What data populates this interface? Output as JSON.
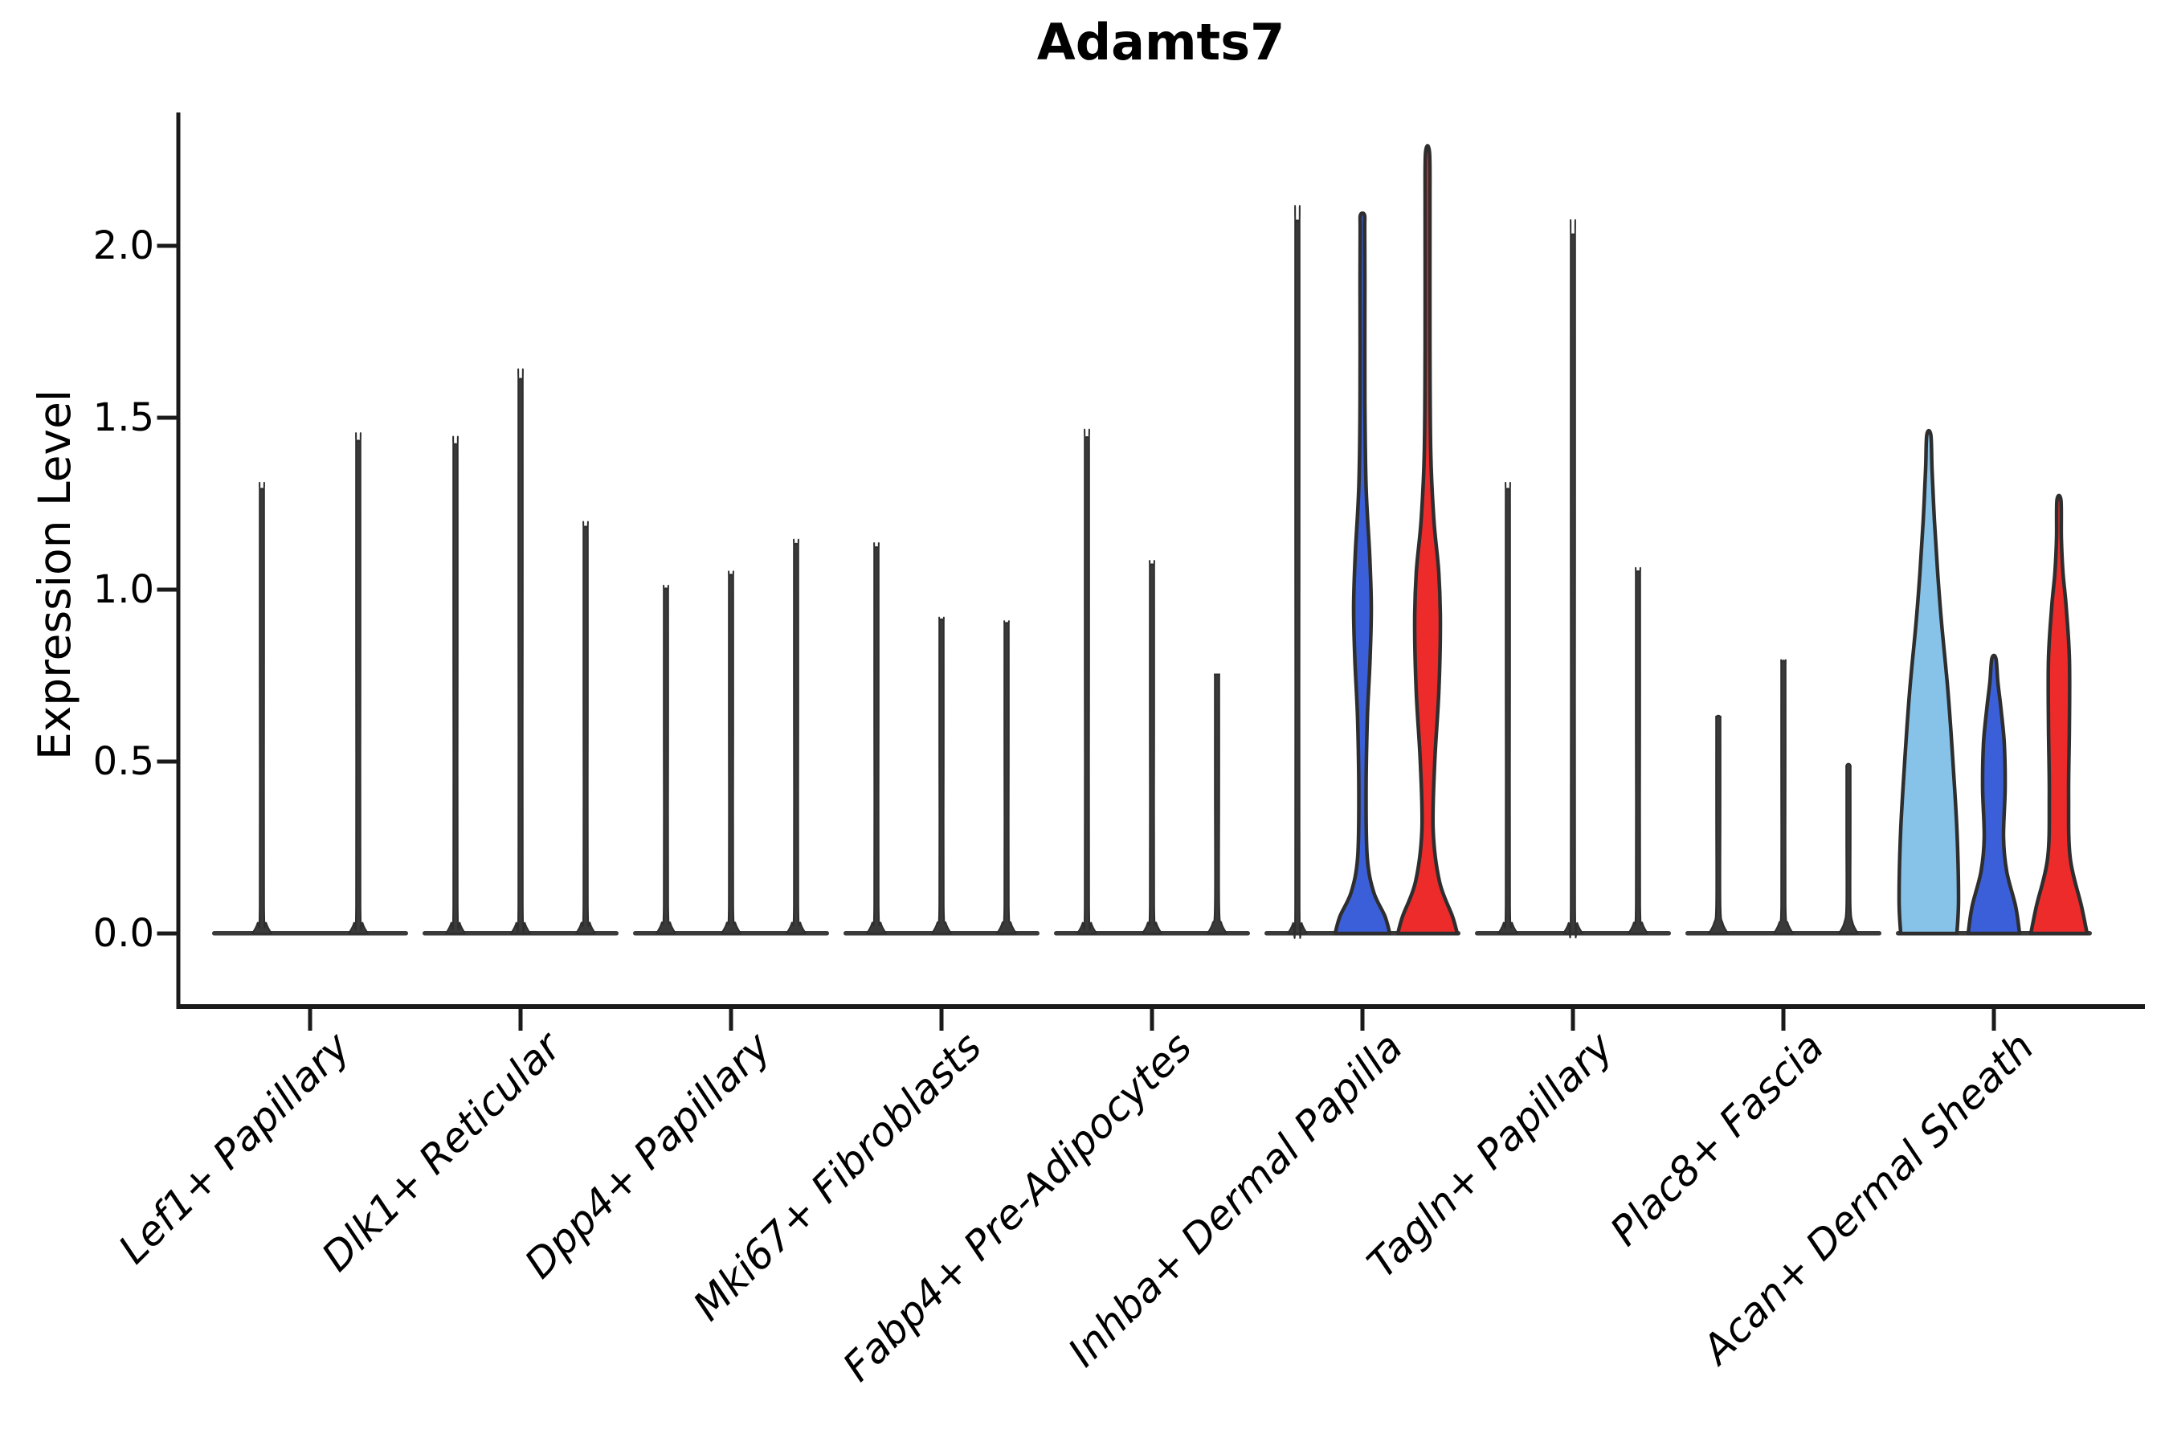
{
  "title": "Adamts7",
  "y_axis": {
    "label": "Expression Level",
    "tick_labels": [
      "0.0",
      "0.5",
      "1.0",
      "1.5",
      "2.0"
    ]
  },
  "colors": {
    "background": "#FFFFFF",
    "axis": "#1A1A1A",
    "text": "#000000",
    "outline": "#2E2E2E",
    "spike": "#3A3A3A",
    "skyblue": "#87C3E8",
    "blue": "#3B5FD8",
    "red": "#ED2B2B"
  },
  "chart_data": {
    "type": "violin",
    "title": "Adamts7",
    "xlabel": "",
    "ylabel": "Expression Level",
    "ylim": [
      0,
      2.39
    ],
    "yticks": [
      0.0,
      0.5,
      1.0,
      1.5,
      2.0
    ],
    "grid": false,
    "legend": "none",
    "categories": [
      "Lef1+ Papillary",
      "Dlk1+ Reticular",
      "Dpp4+ Papillary",
      "Mki67+ Fibroblasts",
      "Fabp4+ Pre-Adipocytes",
      "Inhba+ Dermal Papilla",
      "Tagln+ Papillary",
      "Plac8+ Fascia",
      "Acan+ Dermal Sheath"
    ],
    "groups": [
      {
        "category": "Lef1+ Papillary",
        "violins": [
          {
            "kind": "spike",
            "peak": 1.29,
            "color": "spike"
          },
          {
            "kind": "spike",
            "peak": 1.43,
            "color": "spike"
          }
        ]
      },
      {
        "category": "Dlk1+ Reticular",
        "violins": [
          {
            "kind": "spike",
            "peak": 1.42,
            "color": "spike"
          },
          {
            "kind": "spike",
            "peak": 1.61,
            "color": "spike"
          },
          {
            "kind": "spike",
            "peak": 1.18,
            "color": "spike"
          }
        ]
      },
      {
        "category": "Dpp4+ Papillary",
        "violins": [
          {
            "kind": "spike",
            "peak": 1.0,
            "color": "spike"
          },
          {
            "kind": "spike",
            "peak": 1.04,
            "color": "spike"
          },
          {
            "kind": "spike",
            "peak": 1.13,
            "color": "spike"
          }
        ]
      },
      {
        "category": "Mki67+ Fibroblasts",
        "violins": [
          {
            "kind": "spike",
            "peak": 1.12,
            "color": "spike"
          },
          {
            "kind": "spike",
            "peak": 0.91,
            "color": "spike"
          },
          {
            "kind": "spike",
            "peak": 0.9,
            "color": "spike"
          }
        ]
      },
      {
        "category": "Fabp4+ Pre-Adipocytes",
        "violins": [
          {
            "kind": "spike",
            "peak": 1.44,
            "color": "spike"
          },
          {
            "kind": "spike",
            "peak": 1.07,
            "color": "spike"
          },
          {
            "kind": "spike",
            "peak": 0.75,
            "color": "spike"
          }
        ]
      },
      {
        "category": "Inhba+ Dermal Papilla",
        "violins": [
          {
            "kind": "spike",
            "peak": 2.07,
            "color": "spike"
          },
          {
            "kind": "violin",
            "peak": 2.09,
            "color": "blue",
            "profile": [
              [
                0,
                34
              ],
              [
                0.05,
                28
              ],
              [
                0.12,
                14
              ],
              [
                0.22,
                6
              ],
              [
                0.4,
                4.5
              ],
              [
                0.62,
                6
              ],
              [
                0.8,
                9.5
              ],
              [
                0.95,
                11
              ],
              [
                1.1,
                9
              ],
              [
                1.3,
                4.5
              ],
              [
                1.55,
                3
              ],
              [
                1.9,
                3
              ],
              [
                2.05,
                2.8
              ],
              [
                2.09,
                2.5
              ]
            ]
          },
          {
            "kind": "violin",
            "peak": 2.27,
            "color": "red",
            "profile": [
              [
                0,
                37
              ],
              [
                0.05,
                31
              ],
              [
                0.15,
                15
              ],
              [
                0.3,
                7
              ],
              [
                0.5,
                9
              ],
              [
                0.7,
                14
              ],
              [
                0.9,
                16
              ],
              [
                1.05,
                14
              ],
              [
                1.2,
                8
              ],
              [
                1.4,
                4
              ],
              [
                1.7,
                3
              ],
              [
                2.1,
                3
              ],
              [
                2.27,
                2.5
              ]
            ]
          }
        ]
      },
      {
        "category": "Tagln+ Papillary",
        "violins": [
          {
            "kind": "spike",
            "peak": 1.29,
            "color": "spike"
          },
          {
            "kind": "spike",
            "peak": 2.03,
            "color": "spike"
          },
          {
            "kind": "spike",
            "peak": 1.05,
            "color": "spike"
          }
        ]
      },
      {
        "category": "Plac8+ Fascia",
        "violins": [
          {
            "kind": "spike",
            "peak": 0.63,
            "color": "spike"
          },
          {
            "kind": "spike",
            "peak": 0.79,
            "color": "spike"
          },
          {
            "kind": "spike",
            "peak": 0.49,
            "color": "spike"
          }
        ]
      },
      {
        "category": "Acan+ Dermal Sheath",
        "violins": [
          {
            "kind": "violin",
            "peak": 1.45,
            "color": "skyblue",
            "profile": [
              [
                0,
                35
              ],
              [
                0.1,
                37
              ],
              [
                0.3,
                35
              ],
              [
                0.5,
                30
              ],
              [
                0.7,
                24
              ],
              [
                0.9,
                16
              ],
              [
                1.05,
                11
              ],
              [
                1.2,
                7
              ],
              [
                1.35,
                4
              ],
              [
                1.45,
                2.5
              ]
            ]
          },
          {
            "kind": "violin",
            "peak": 0.8,
            "color": "blue",
            "profile": [
              [
                0,
                32
              ],
              [
                0.08,
                27
              ],
              [
                0.18,
                16
              ],
              [
                0.28,
                12
              ],
              [
                0.42,
                14
              ],
              [
                0.55,
                13
              ],
              [
                0.65,
                9
              ],
              [
                0.73,
                5
              ],
              [
                0.8,
                2.5
              ]
            ]
          },
          {
            "kind": "violin",
            "peak": 1.26,
            "color": "red",
            "profile": [
              [
                0,
                35
              ],
              [
                0.08,
                28
              ],
              [
                0.22,
                14
              ],
              [
                0.4,
                12
              ],
              [
                0.6,
                13
              ],
              [
                0.8,
                13
              ],
              [
                0.95,
                9
              ],
              [
                1.05,
                5
              ],
              [
                1.15,
                3
              ],
              [
                1.26,
                2.5
              ]
            ]
          }
        ]
      }
    ]
  }
}
